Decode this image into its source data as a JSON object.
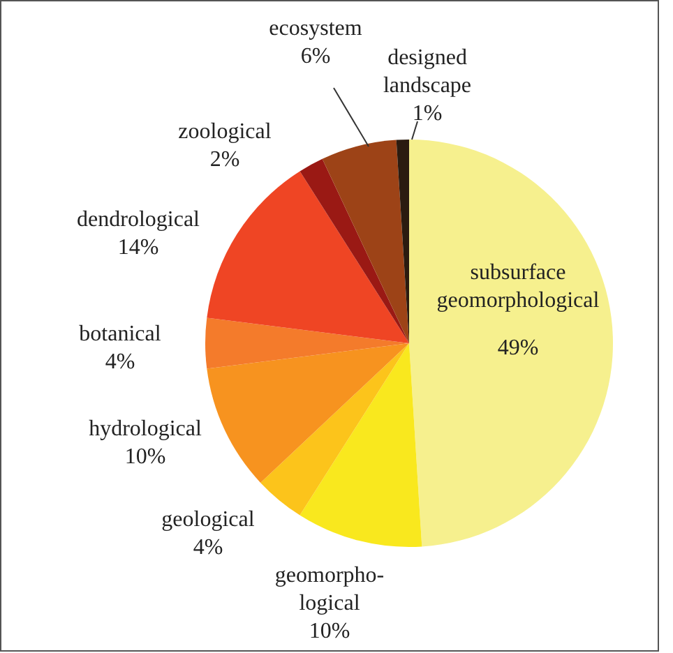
{
  "chart_data": {
    "type": "pie",
    "categories": [
      "subsurface geomorphological",
      "geomorpho-logical",
      "geological",
      "hydrological",
      "botanical",
      "dendrological",
      "zoological",
      "ecosystem",
      "designed landscape"
    ],
    "values": [
      49,
      10,
      4,
      10,
      4,
      14,
      2,
      6,
      1
    ],
    "value_labels": [
      "49%",
      "10%",
      "4%",
      "10%",
      "4%",
      "14%",
      "2%",
      "6%",
      "1%"
    ],
    "colors": [
      "#f6f08e",
      "#f9e81e",
      "#fcc41b",
      "#f7931f",
      "#f47b2b",
      "#ef4524",
      "#9a1914",
      "#9d4317",
      "#2b1b10"
    ],
    "legend": false
  }
}
